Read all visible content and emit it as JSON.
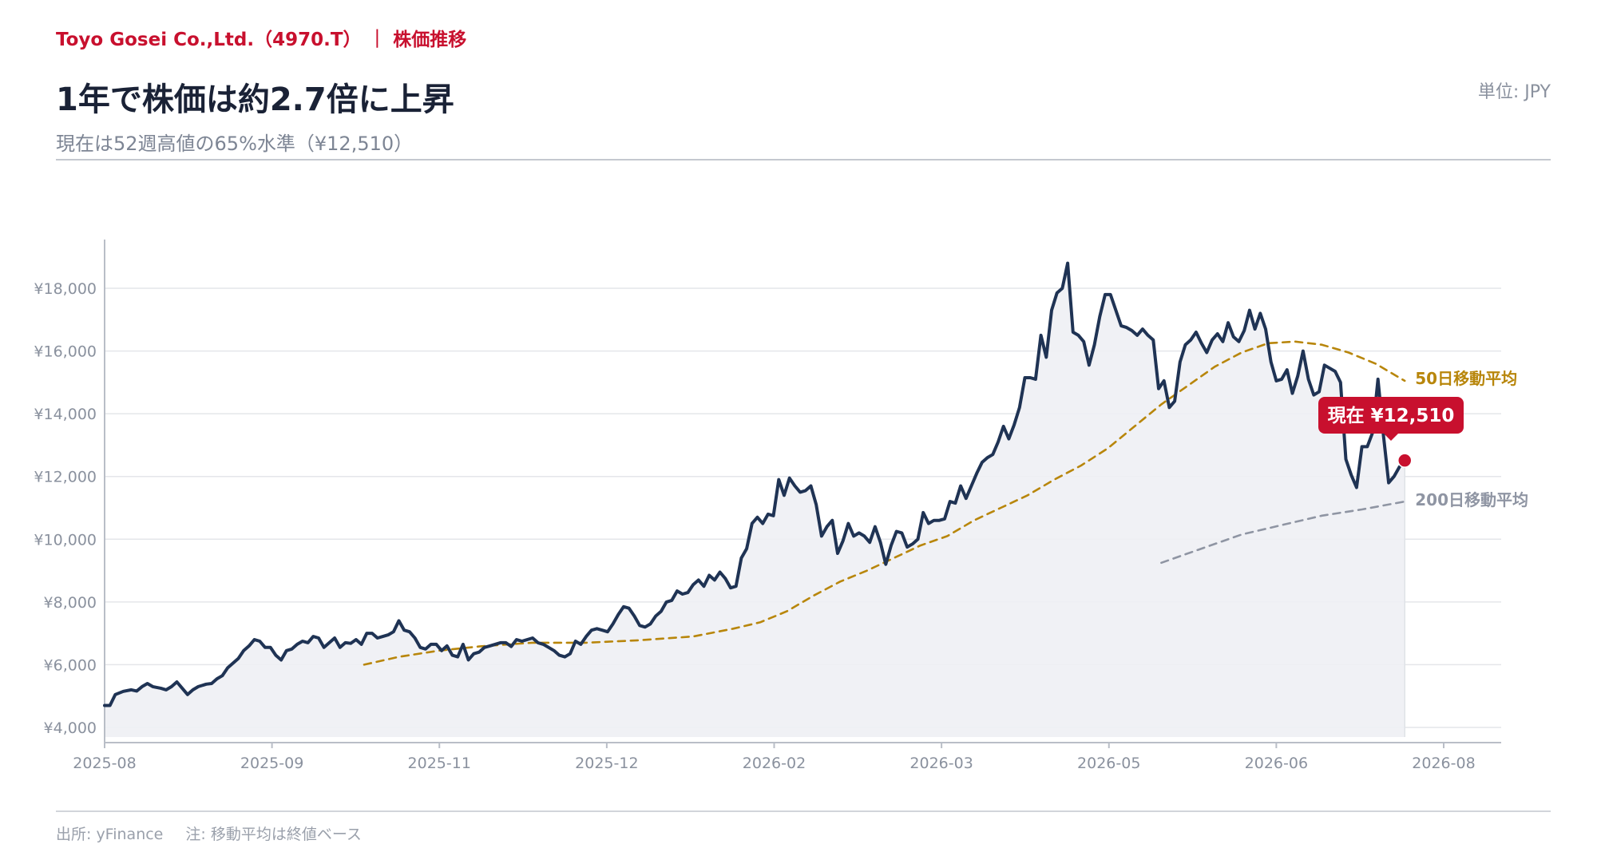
{
  "header": {
    "company": "Toyo Gosei Co.,Ltd.（4970.T）",
    "separator": "|",
    "section": "株価推移",
    "title": "1年で株価は約2.7倍に上昇",
    "subtitle": "現在は52週高値の65%水準（¥12,510）",
    "unit": "単位: JPY"
  },
  "footer": {
    "source": "出所: yFinance",
    "note": "注: 移動平均は終値ベース"
  },
  "colors": {
    "accent": "#c8102e",
    "price_line": "#1f3354",
    "area_fill": "#eef0f4",
    "ma50": "#b8860b",
    "ma200": "#8f95a3",
    "grid": "#e4e6ea"
  },
  "chart_data": {
    "type": "line",
    "ylim": [
      4000,
      19000
    ],
    "y_ticks": [
      4000,
      6000,
      8000,
      10000,
      12000,
      14000,
      16000,
      18000
    ],
    "y_tick_labels": [
      "¥4,000",
      "¥6,000",
      "¥8,000",
      "¥10,000",
      "¥12,000",
      "¥14,000",
      "¥16,000",
      "¥18,000"
    ],
    "x_ticks": [
      "2025-08",
      "2025-09",
      "2025-11",
      "2025-12",
      "2026-02",
      "2026-03",
      "2026-05",
      "2026-06",
      "2026-08"
    ],
    "grid": "horizontal",
    "callout": "現在  ¥12,510",
    "current_value": 12510,
    "series": [
      {
        "name": "",
        "style": "solid",
        "points": [
          [
            0,
            4700
          ],
          [
            2,
            4700
          ],
          [
            4,
            5050
          ],
          [
            7,
            5150
          ],
          [
            10,
            5200
          ],
          [
            12,
            5160
          ],
          [
            14,
            5300
          ],
          [
            16,
            5400
          ],
          [
            18,
            5300
          ],
          [
            21,
            5250
          ],
          [
            23,
            5200
          ],
          [
            25,
            5300
          ],
          [
            27,
            5450
          ],
          [
            29,
            5250
          ],
          [
            31,
            5050
          ],
          [
            33,
            5200
          ],
          [
            35,
            5300
          ],
          [
            38,
            5380
          ],
          [
            40,
            5400
          ],
          [
            42,
            5550
          ],
          [
            44,
            5650
          ],
          [
            46,
            5900
          ],
          [
            48,
            6050
          ],
          [
            50,
            6200
          ],
          [
            52,
            6450
          ],
          [
            54,
            6600
          ],
          [
            56,
            6800
          ],
          [
            58,
            6750
          ],
          [
            60,
            6550
          ],
          [
            62,
            6550
          ],
          [
            64,
            6300
          ],
          [
            66,
            6150
          ],
          [
            68,
            6450
          ],
          [
            70,
            6500
          ],
          [
            72,
            6650
          ],
          [
            74,
            6750
          ],
          [
            76,
            6700
          ],
          [
            78,
            6900
          ],
          [
            80,
            6850
          ],
          [
            82,
            6550
          ],
          [
            84,
            6700
          ],
          [
            86,
            6850
          ],
          [
            88,
            6550
          ],
          [
            90,
            6700
          ],
          [
            92,
            6680
          ],
          [
            94,
            6800
          ],
          [
            96,
            6650
          ],
          [
            98,
            7000
          ],
          [
            100,
            7000
          ],
          [
            102,
            6850
          ],
          [
            104,
            6900
          ],
          [
            106,
            6950
          ],
          [
            108,
            7050
          ],
          [
            110,
            7400
          ],
          [
            112,
            7100
          ],
          [
            114,
            7050
          ],
          [
            116,
            6850
          ],
          [
            118,
            6550
          ],
          [
            120,
            6500
          ],
          [
            122,
            6650
          ],
          [
            124,
            6650
          ],
          [
            126,
            6450
          ],
          [
            128,
            6600
          ],
          [
            130,
            6300
          ],
          [
            132,
            6250
          ],
          [
            134,
            6650
          ],
          [
            136,
            6150
          ],
          [
            138,
            6350
          ],
          [
            140,
            6400
          ],
          [
            142,
            6550
          ],
          [
            144,
            6600
          ],
          [
            146,
            6650
          ],
          [
            148,
            6700
          ],
          [
            150,
            6700
          ],
          [
            152,
            6580
          ],
          [
            154,
            6800
          ],
          [
            156,
            6750
          ],
          [
            158,
            6800
          ],
          [
            160,
            6850
          ],
          [
            162,
            6700
          ],
          [
            164,
            6650
          ],
          [
            166,
            6550
          ],
          [
            168,
            6450
          ],
          [
            170,
            6300
          ],
          [
            172,
            6250
          ],
          [
            174,
            6350
          ],
          [
            176,
            6750
          ],
          [
            178,
            6650
          ],
          [
            180,
            6900
          ],
          [
            182,
            7100
          ],
          [
            184,
            7150
          ],
          [
            186,
            7100
          ],
          [
            188,
            7050
          ],
          [
            190,
            7300
          ],
          [
            192,
            7600
          ],
          [
            194,
            7850
          ],
          [
            196,
            7800
          ],
          [
            198,
            7550
          ],
          [
            200,
            7250
          ],
          [
            202,
            7200
          ],
          [
            204,
            7300
          ],
          [
            206,
            7550
          ],
          [
            208,
            7700
          ],
          [
            210,
            8000
          ],
          [
            212,
            8050
          ],
          [
            214,
            8350
          ],
          [
            216,
            8250
          ],
          [
            218,
            8300
          ],
          [
            220,
            8550
          ],
          [
            222,
            8700
          ],
          [
            224,
            8500
          ],
          [
            226,
            8850
          ],
          [
            228,
            8700
          ],
          [
            230,
            8950
          ],
          [
            232,
            8750
          ],
          [
            234,
            8450
          ],
          [
            236,
            8500
          ],
          [
            238,
            9400
          ],
          [
            240,
            9700
          ],
          [
            242,
            10500
          ],
          [
            244,
            10700
          ],
          [
            246,
            10500
          ],
          [
            248,
            10800
          ],
          [
            250,
            10750
          ],
          [
            252,
            11900
          ],
          [
            254,
            11400
          ],
          [
            256,
            11950
          ],
          [
            258,
            11700
          ],
          [
            260,
            11500
          ],
          [
            262,
            11550
          ],
          [
            264,
            11700
          ],
          [
            266,
            11100
          ],
          [
            268,
            10100
          ],
          [
            270,
            10400
          ],
          [
            272,
            10600
          ],
          [
            274,
            9550
          ],
          [
            276,
            9950
          ],
          [
            278,
            10500
          ],
          [
            280,
            10100
          ],
          [
            282,
            10200
          ],
          [
            284,
            10100
          ],
          [
            286,
            9900
          ],
          [
            288,
            10400
          ],
          [
            290,
            9900
          ],
          [
            292,
            9200
          ],
          [
            294,
            9800
          ],
          [
            296,
            10250
          ],
          [
            298,
            10200
          ],
          [
            300,
            9750
          ],
          [
            302,
            9850
          ],
          [
            304,
            10000
          ],
          [
            306,
            10850
          ],
          [
            308,
            10500
          ],
          [
            310,
            10600
          ],
          [
            312,
            10600
          ],
          [
            314,
            10650
          ],
          [
            316,
            11200
          ],
          [
            318,
            11150
          ],
          [
            320,
            11700
          ],
          [
            322,
            11300
          ],
          [
            324,
            11700
          ],
          [
            326,
            12100
          ],
          [
            328,
            12450
          ],
          [
            330,
            12600
          ],
          [
            332,
            12700
          ],
          [
            334,
            13100
          ],
          [
            336,
            13600
          ],
          [
            338,
            13200
          ],
          [
            340,
            13650
          ],
          [
            342,
            14200
          ],
          [
            344,
            15150
          ],
          [
            346,
            15150
          ],
          [
            348,
            15100
          ],
          [
            350,
            16500
          ],
          [
            352,
            15800
          ],
          [
            354,
            17300
          ],
          [
            356,
            17850
          ],
          [
            358,
            18000
          ],
          [
            360,
            18800
          ],
          [
            362,
            16600
          ],
          [
            364,
            16500
          ],
          [
            366,
            16300
          ],
          [
            368,
            15550
          ],
          [
            370,
            16200
          ],
          [
            372,
            17100
          ],
          [
            374,
            17800
          ],
          [
            376,
            17800
          ],
          [
            378,
            17300
          ],
          [
            380,
            16800
          ],
          [
            382,
            16750
          ],
          [
            384,
            16650
          ],
          [
            386,
            16500
          ],
          [
            388,
            16700
          ],
          [
            390,
            16500
          ],
          [
            392,
            16350
          ],
          [
            394,
            14800
          ],
          [
            396,
            15050
          ],
          [
            398,
            14200
          ],
          [
            400,
            14400
          ],
          [
            402,
            15650
          ],
          [
            404,
            16200
          ],
          [
            406,
            16350
          ],
          [
            408,
            16600
          ],
          [
            410,
            16250
          ],
          [
            412,
            15950
          ],
          [
            414,
            16350
          ],
          [
            416,
            16550
          ],
          [
            418,
            16300
          ],
          [
            420,
            16900
          ],
          [
            422,
            16450
          ],
          [
            424,
            16300
          ],
          [
            426,
            16650
          ],
          [
            428,
            17300
          ],
          [
            430,
            16700
          ],
          [
            432,
            17200
          ],
          [
            434,
            16700
          ],
          [
            436,
            15650
          ],
          [
            438,
            15050
          ],
          [
            440,
            15100
          ],
          [
            442,
            15400
          ],
          [
            444,
            14650
          ],
          [
            446,
            15200
          ],
          [
            448,
            16000
          ],
          [
            450,
            15100
          ],
          [
            452,
            14600
          ],
          [
            454,
            14700
          ],
          [
            456,
            15550
          ],
          [
            458,
            15450
          ],
          [
            460,
            15350
          ],
          [
            462,
            15000
          ],
          [
            464,
            12550
          ],
          [
            466,
            12050
          ],
          [
            468,
            11650
          ],
          [
            470,
            12950
          ],
          [
            472,
            12950
          ],
          [
            474,
            13400
          ],
          [
            476,
            15100
          ],
          [
            478,
            13350
          ],
          [
            480,
            11800
          ],
          [
            482,
            12000
          ],
          [
            484,
            12300
          ],
          [
            486,
            12510
          ]
        ]
      },
      {
        "name": "50日移動平均",
        "style": "dashed",
        "points": [
          [
            97,
            6000
          ],
          [
            110,
            6250
          ],
          [
            125,
            6450
          ],
          [
            140,
            6580
          ],
          [
            160,
            6700
          ],
          [
            180,
            6700
          ],
          [
            200,
            6780
          ],
          [
            220,
            6900
          ],
          [
            235,
            7150
          ],
          [
            245,
            7350
          ],
          [
            255,
            7700
          ],
          [
            265,
            8200
          ],
          [
            275,
            8650
          ],
          [
            285,
            9000
          ],
          [
            295,
            9400
          ],
          [
            305,
            9800
          ],
          [
            315,
            10100
          ],
          [
            325,
            10600
          ],
          [
            335,
            11000
          ],
          [
            345,
            11400
          ],
          [
            355,
            11900
          ],
          [
            365,
            12350
          ],
          [
            375,
            12900
          ],
          [
            385,
            13600
          ],
          [
            395,
            14300
          ],
          [
            405,
            14900
          ],
          [
            415,
            15500
          ],
          [
            425,
            15950
          ],
          [
            435,
            16250
          ],
          [
            445,
            16300
          ],
          [
            455,
            16200
          ],
          [
            465,
            15950
          ],
          [
            475,
            15600
          ],
          [
            486,
            15050
          ]
        ]
      },
      {
        "name": "200日移動平均",
        "style": "dashed",
        "points": [
          [
            395,
            9250
          ],
          [
            410,
            9700
          ],
          [
            425,
            10150
          ],
          [
            440,
            10450
          ],
          [
            455,
            10750
          ],
          [
            470,
            10950
          ],
          [
            486,
            11200
          ]
        ]
      }
    ]
  }
}
